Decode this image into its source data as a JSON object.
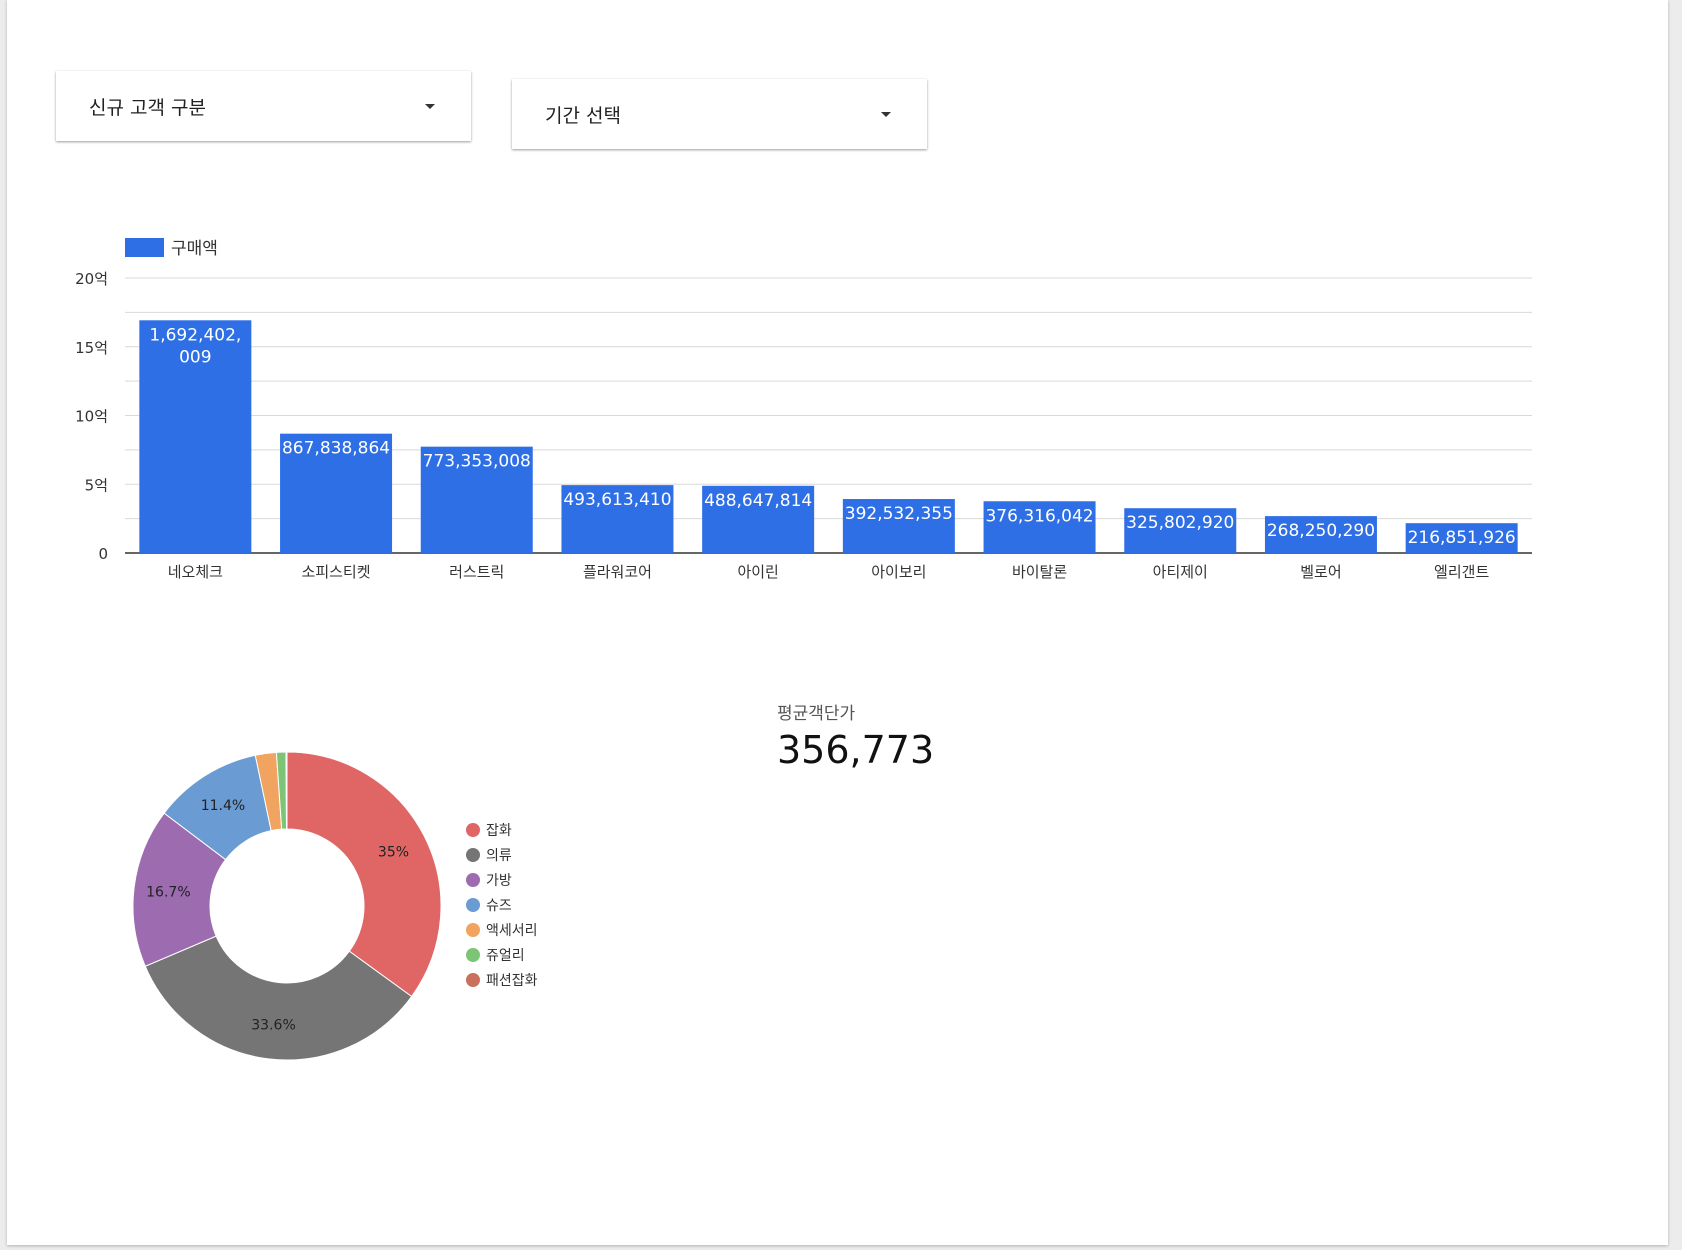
{
  "controls": {
    "customer_type": "신규 고객 구분",
    "period": "기간 선택"
  },
  "chart_data": [
    {
      "type": "bar",
      "legend": "구매액",
      "legend_position": "top-left",
      "color": "#2f6fe6",
      "categories": [
        "네오체크",
        "소피스티켓",
        "러스트릭",
        "플라워코어",
        "아이린",
        "아이보리",
        "바이탈론",
        "아티제이",
        "벨로어",
        "엘리갠트"
      ],
      "values": [
        1692402009,
        867838864,
        773353008,
        493613410,
        488647814,
        392532355,
        376316042,
        325802920,
        268250290,
        216851926
      ],
      "value_labels": [
        [
          "1,692,402,",
          "009"
        ],
        [
          "867,838,864"
        ],
        [
          "773,353,008"
        ],
        [
          "493,613,410"
        ],
        [
          "488,647,814"
        ],
        [
          "392,532,355"
        ],
        [
          "376,316,042"
        ],
        [
          "325,802,920"
        ],
        [
          "268,250,290"
        ],
        [
          "216,851,926"
        ]
      ],
      "ylim": [
        0,
        2000000000
      ],
      "yticks": [
        0,
        500000000,
        1000000000,
        1500000000,
        2000000000
      ],
      "ytick_labels": [
        "0",
        "5억",
        "10억",
        "15억",
        "20억"
      ],
      "grid": true
    },
    {
      "type": "pie",
      "donut": true,
      "legend_position": "right",
      "slices": [
        {
          "label": "잡화",
          "value": 35.0,
          "pct_label": "35%",
          "color": "#e06666"
        },
        {
          "label": "의류",
          "value": 33.6,
          "pct_label": "33.6%",
          "color": "#757575"
        },
        {
          "label": "가방",
          "value": 16.7,
          "pct_label": "16.7%",
          "color": "#9c6bb0"
        },
        {
          "label": "슈즈",
          "value": 11.4,
          "pct_label": "11.4%",
          "color": "#6a9bd3"
        },
        {
          "label": "액세서리",
          "value": 2.2,
          "pct_label": "",
          "color": "#f0a460"
        },
        {
          "label": "쥬얼리",
          "value": 1.0,
          "pct_label": "",
          "color": "#7dc574"
        },
        {
          "label": "패션잡화",
          "value": 0.1,
          "pct_label": "",
          "color": "#c9715e"
        }
      ]
    }
  ],
  "scorecard": {
    "label": "평균객단가",
    "value": "356,773"
  }
}
